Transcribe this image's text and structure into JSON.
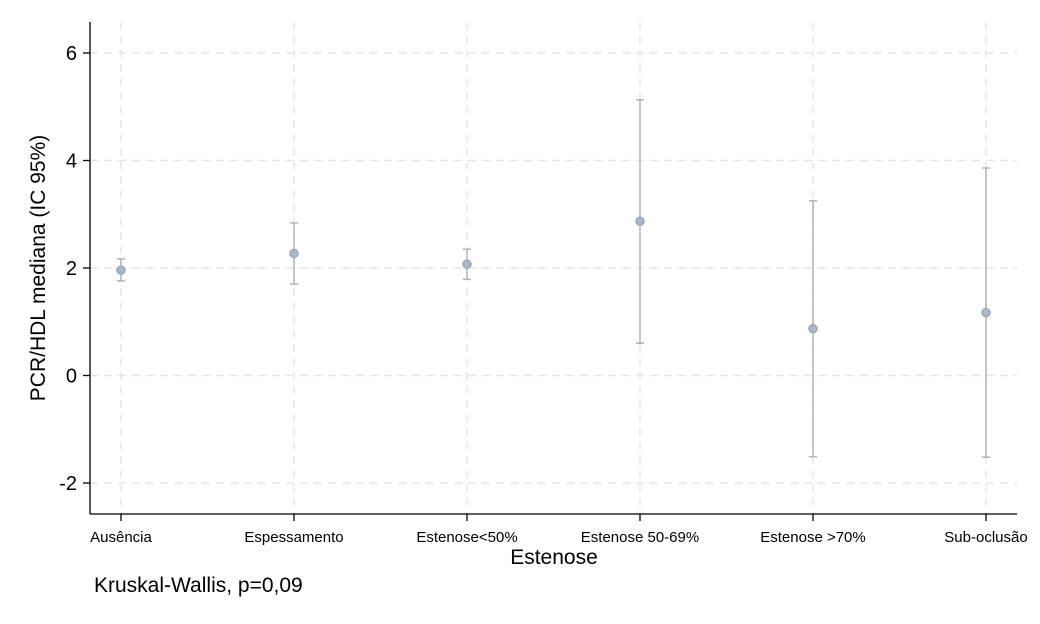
{
  "chart_data": {
    "type": "scatter",
    "subtype": "point-with-error-bars",
    "categories": [
      "Ausência",
      "Espessamento",
      "Estenose<50%",
      "Estenose 50-69%",
      "Estenose >70%",
      "Sub-oclusão"
    ],
    "series": [
      {
        "values": [
          1.96,
          2.27,
          2.07,
          2.87,
          0.87,
          1.17
        ],
        "ci_lower": [
          1.76,
          1.7,
          1.79,
          0.6,
          -1.51,
          -1.52
        ],
        "ci_upper": [
          2.17,
          2.84,
          2.35,
          5.13,
          3.25,
          3.86
        ]
      }
    ],
    "xlabel": "Estenose",
    "ylabel": "PCR/HDL mediana (IC 95%)",
    "ylim": [
      -2.6,
      6.6
    ],
    "yticks": [
      -2,
      0,
      2,
      4,
      6
    ],
    "ytick_labels": [
      "-2",
      "0",
      "2",
      "4",
      "6"
    ],
    "grid": true,
    "note": "Kruskal-Wallis, p=0,09",
    "colors": {
      "point": "#aab8cc",
      "point_stroke": "#8e9db3",
      "errorbar": "#b4b4b4",
      "grid": "#e6e6e6",
      "axis": "#000000"
    }
  }
}
